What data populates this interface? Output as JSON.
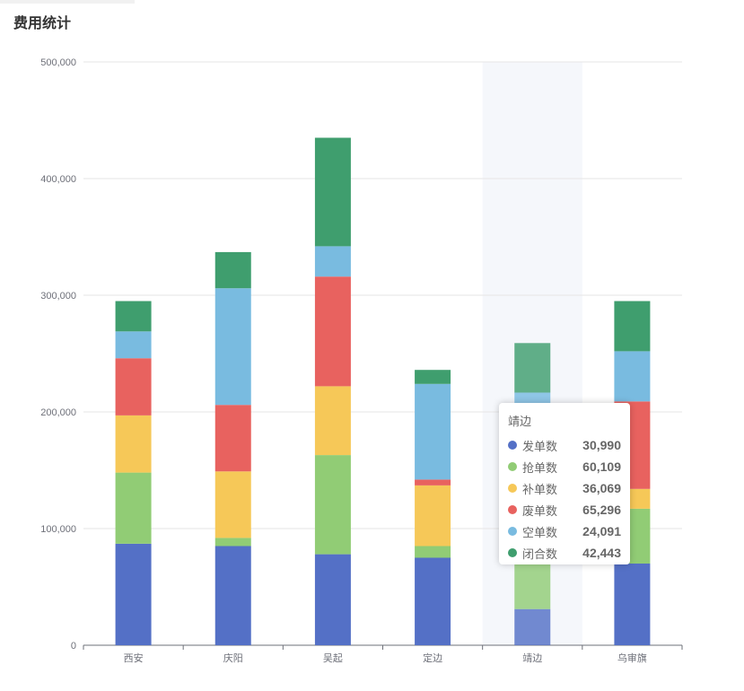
{
  "title": "费用统计",
  "chart_data": {
    "type": "bar",
    "stacked": true,
    "categories": [
      "西安",
      "庆阳",
      "吴起",
      "定边",
      "靖边",
      "乌审旗"
    ],
    "ylim": [
      0,
      500000
    ],
    "yticks": [
      "0",
      "100,000",
      "200,000",
      "300,000",
      "400,000",
      "500,000"
    ],
    "ytick_values": [
      0,
      100000,
      200000,
      300000,
      400000,
      500000
    ],
    "grid": true,
    "highlighted_category": "靖边",
    "series": [
      {
        "name": "发单数",
        "color": "#5470c6",
        "values": [
          87000,
          85000,
          78000,
          75000,
          30990,
          70000
        ]
      },
      {
        "name": "抢单数",
        "color": "#91cc75",
        "values": [
          61000,
          7000,
          85000,
          10000,
          60109,
          47000
        ]
      },
      {
        "name": "补单数",
        "color": "#f6c858",
        "values": [
          49000,
          57000,
          59000,
          52000,
          36069,
          17000
        ]
      },
      {
        "name": "废单数",
        "color": "#e8625f",
        "values": [
          49000,
          57000,
          94000,
          5000,
          65296,
          75000
        ]
      },
      {
        "name": "空单数",
        "color": "#79bbe0",
        "values": [
          23000,
          100000,
          26000,
          82000,
          24091,
          43000
        ]
      },
      {
        "name": "闭合数",
        "color": "#3f9e6e",
        "values": [
          26000,
          31000,
          93000,
          12000,
          42443,
          43000
        ]
      }
    ]
  },
  "tooltip": {
    "title": "靖边",
    "rows": [
      {
        "name": "发单数",
        "value": "30,990",
        "color": "#5470c6"
      },
      {
        "name": "抢单数",
        "value": "60,109",
        "color": "#91cc75"
      },
      {
        "name": "补单数",
        "value": "36,069",
        "color": "#f6c858"
      },
      {
        "name": "废单数",
        "value": "65,296",
        "color": "#e8625f"
      },
      {
        "name": "空单数",
        "value": "24,091",
        "color": "#79bbe0"
      },
      {
        "name": "闭合数",
        "value": "42,443",
        "color": "#3f9e6e"
      }
    ]
  }
}
